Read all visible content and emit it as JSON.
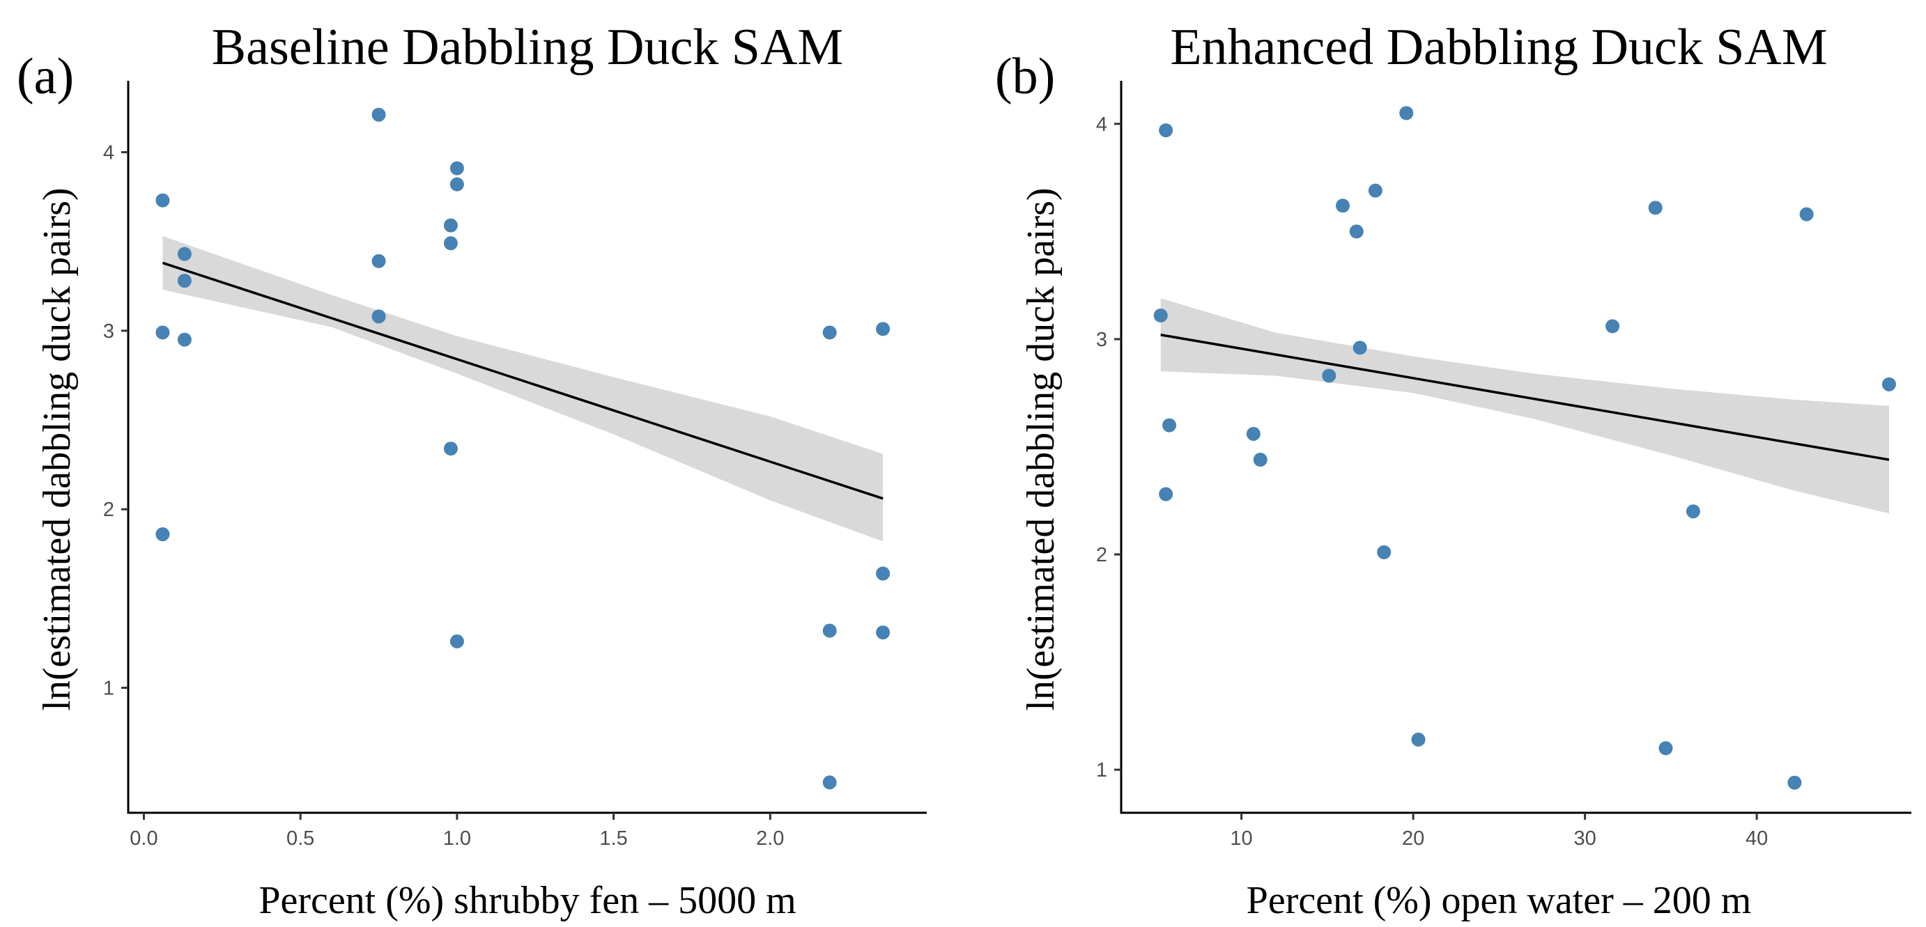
{
  "figure": {
    "colors": {
      "point": "#4682b4",
      "fit_line": "#000000",
      "ci_band": "#d9d9d9"
    }
  },
  "chart_data": [
    {
      "type": "scatter",
      "panel_label": "(a)",
      "title": "Baseline Dabbling Duck SAM",
      "xlabel": "Percent (%) shrubby fen – 5000 m",
      "ylabel": "ln(estimated dabbling duck pairs)",
      "xlim": [
        -0.05,
        2.5
      ],
      "ylim": [
        0.3,
        4.4
      ],
      "xticks": [
        0.0,
        0.5,
        1.0,
        1.5,
        2.0
      ],
      "xtick_labels": [
        "0.0",
        "0.5",
        "1.0",
        "1.5",
        "2.0"
      ],
      "yticks": [
        1,
        2,
        3,
        4
      ],
      "ytick_labels": [
        "1",
        "2",
        "3",
        "4"
      ],
      "grid": false,
      "legend": "none",
      "points": [
        {
          "x": 0.06,
          "y": 3.73
        },
        {
          "x": 0.06,
          "y": 2.99
        },
        {
          "x": 0.06,
          "y": 1.86
        },
        {
          "x": 0.13,
          "y": 3.43
        },
        {
          "x": 0.13,
          "y": 3.28
        },
        {
          "x": 0.13,
          "y": 2.95
        },
        {
          "x": 0.75,
          "y": 4.21
        },
        {
          "x": 0.75,
          "y": 3.39
        },
        {
          "x": 0.75,
          "y": 3.08
        },
        {
          "x": 0.98,
          "y": 3.59
        },
        {
          "x": 0.98,
          "y": 3.49
        },
        {
          "x": 0.98,
          "y": 2.34
        },
        {
          "x": 1.0,
          "y": 3.91
        },
        {
          "x": 1.0,
          "y": 3.82
        },
        {
          "x": 1.0,
          "y": 1.26
        },
        {
          "x": 2.19,
          "y": 2.99
        },
        {
          "x": 2.19,
          "y": 1.32
        },
        {
          "x": 2.19,
          "y": 0.47
        },
        {
          "x": 2.36,
          "y": 3.01
        },
        {
          "x": 2.36,
          "y": 1.64
        },
        {
          "x": 2.36,
          "y": 1.31
        }
      ],
      "fit": {
        "x": [
          0.06,
          2.36
        ],
        "y": [
          3.38,
          2.06
        ]
      },
      "band": [
        {
          "x": 0.06,
          "lower": 3.23,
          "upper": 3.53
        },
        {
          "x": 0.6,
          "lower": 3.02,
          "upper": 3.2
        },
        {
          "x": 1.0,
          "lower": 2.76,
          "upper": 2.97
        },
        {
          "x": 1.5,
          "lower": 2.42,
          "upper": 2.74
        },
        {
          "x": 2.0,
          "lower": 2.05,
          "upper": 2.52
        },
        {
          "x": 2.36,
          "lower": 1.82,
          "upper": 2.31
        }
      ]
    },
    {
      "type": "scatter",
      "panel_label": "(b)",
      "title": "Enhanced Dabbling Duck SAM",
      "xlabel": "Percent (%) open water – 200 m",
      "ylabel": "ln(estimated dabbling duck pairs)",
      "xlim": [
        3.0,
        49.0
      ],
      "ylim": [
        0.8,
        4.2
      ],
      "xticks": [
        10,
        20,
        30,
        40
      ],
      "xtick_labels": [
        "10",
        "20",
        "30",
        "40"
      ],
      "yticks": [
        1,
        2,
        3,
        4
      ],
      "ytick_labels": [
        "1",
        "2",
        "3",
        "4"
      ],
      "grid": false,
      "legend": "none",
      "points": [
        {
          "x": 5.3,
          "y": 3.11
        },
        {
          "x": 5.6,
          "y": 3.97
        },
        {
          "x": 5.6,
          "y": 2.28
        },
        {
          "x": 5.8,
          "y": 2.6
        },
        {
          "x": 10.7,
          "y": 2.56
        },
        {
          "x": 11.1,
          "y": 2.44
        },
        {
          "x": 15.1,
          "y": 2.83
        },
        {
          "x": 15.9,
          "y": 3.62
        },
        {
          "x": 16.7,
          "y": 3.5
        },
        {
          "x": 16.9,
          "y": 2.96
        },
        {
          "x": 17.8,
          "y": 3.69
        },
        {
          "x": 18.3,
          "y": 2.01
        },
        {
          "x": 19.6,
          "y": 4.05
        },
        {
          "x": 20.3,
          "y": 1.14
        },
        {
          "x": 31.6,
          "y": 3.06
        },
        {
          "x": 34.1,
          "y": 3.61
        },
        {
          "x": 34.7,
          "y": 1.1
        },
        {
          "x": 36.3,
          "y": 2.2
        },
        {
          "x": 42.2,
          "y": 0.94
        },
        {
          "x": 42.9,
          "y": 3.58
        },
        {
          "x": 47.7,
          "y": 2.79
        }
      ],
      "fit": {
        "x": [
          5.3,
          47.7
        ],
        "y": [
          3.02,
          2.44
        ]
      },
      "band": [
        {
          "x": 5.3,
          "lower": 2.85,
          "upper": 3.19
        },
        {
          "x": 12.0,
          "lower": 2.83,
          "upper": 3.03
        },
        {
          "x": 20.0,
          "lower": 2.75,
          "upper": 2.92
        },
        {
          "x": 27.0,
          "lower": 2.63,
          "upper": 2.84
        },
        {
          "x": 35.0,
          "lower": 2.46,
          "upper": 2.77
        },
        {
          "x": 42.0,
          "lower": 2.3,
          "upper": 2.72
        },
        {
          "x": 47.7,
          "lower": 2.19,
          "upper": 2.69
        }
      ]
    }
  ]
}
